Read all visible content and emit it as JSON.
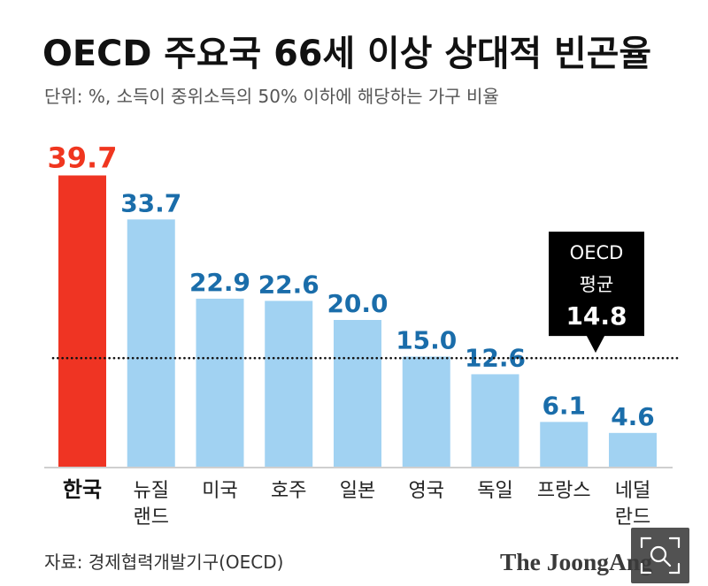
{
  "chart_data": {
    "type": "bar",
    "title": "OECD 주요국 66세 이상 상대적 빈곤율",
    "subtitle": "단위: %, 소득이 중위소득의 50% 이하에 해당하는 가구 비율",
    "xlabel": "",
    "ylabel": "",
    "categories": [
      "한국",
      "뉴질랜드",
      "미국",
      "호주",
      "일본",
      "영국",
      "독일",
      "프랑스",
      "네덜란드"
    ],
    "values": [
      39.7,
      33.7,
      22.9,
      22.6,
      20.0,
      15.0,
      12.6,
      6.1,
      4.6
    ],
    "highlight_index": 0,
    "ylim": [
      0,
      40
    ],
    "grid": false,
    "reference_line": {
      "label_lines": [
        "OECD",
        "평균"
      ],
      "value": 14.8
    },
    "colors": {
      "highlight_bar": "#ef3423",
      "bar": "#a1d2f2",
      "value_label": "#1a6daa",
      "highlight_label": "#f0361f",
      "callout": "#000000",
      "reference_line": "#111111",
      "baseline": "#cfcfcf"
    }
  },
  "source": "자료: 경제협력개발기구(OECD)",
  "logo": "The JoongAng",
  "icons": {
    "zoom": "zoom-icon"
  }
}
